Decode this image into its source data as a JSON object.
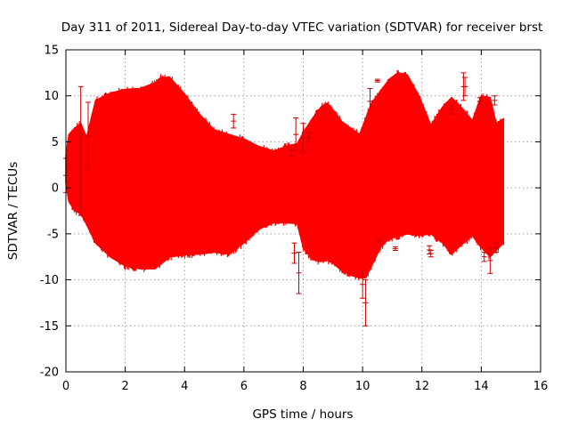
{
  "chart_data": {
    "type": "area",
    "title": "Day 311 of 2011, Sidereal Day-to-day VTEC variation (SDTVAR) for receiver brst",
    "xlabel": "GPS time / hours",
    "ylabel": "SDTVAR / TECUs",
    "xlim": [
      0,
      16
    ],
    "ylim": [
      -20,
      15
    ],
    "xticks": [
      0,
      2,
      4,
      6,
      8,
      10,
      12,
      14,
      16
    ],
    "yticks": [
      -20,
      -15,
      -10,
      -5,
      0,
      5,
      10,
      15
    ],
    "grid": true,
    "legend": "none",
    "colors": {
      "series": "#ff0000",
      "errorbar": "#cc0000",
      "grid": "#a0a0a0"
    },
    "series": [
      {
        "style": "error-bar band",
        "x": [
          0.0,
          0.1,
          0.3,
          0.5,
          0.7,
          1.0,
          1.5,
          2.0,
          2.5,
          3.0,
          3.2,
          3.5,
          4.0,
          4.5,
          5.0,
          5.5,
          6.0,
          6.5,
          7.0,
          7.5,
          7.8,
          8.0,
          8.3,
          8.6,
          8.8,
          9.0,
          9.3,
          9.6,
          9.9,
          10.1,
          10.3,
          10.6,
          10.9,
          11.2,
          11.5,
          11.9,
          12.3,
          12.7,
          13.0,
          13.4,
          13.7,
          14.0,
          14.3,
          14.5,
          14.75
        ],
        "upper": [
          3.5,
          5.8,
          6.5,
          7.0,
          5.5,
          9.5,
          10.3,
          10.7,
          10.8,
          11.4,
          12.0,
          12.0,
          10.2,
          8.0,
          6.3,
          5.8,
          5.3,
          4.5,
          4.0,
          4.6,
          4.8,
          6.0,
          7.5,
          8.8,
          9.2,
          8.5,
          7.2,
          6.5,
          5.8,
          7.5,
          9.2,
          10.5,
          11.8,
          12.5,
          12.3,
          10.0,
          6.8,
          8.8,
          9.8,
          8.5,
          7.3,
          10.0,
          9.8,
          7.0,
          7.5
        ],
        "lower": [
          0.5,
          -1.5,
          -2.5,
          -2.8,
          -4.0,
          -6.0,
          -7.5,
          -8.5,
          -8.8,
          -8.8,
          -8.3,
          -7.5,
          -7.3,
          -7.2,
          -7.0,
          -7.2,
          -6.0,
          -4.5,
          -3.8,
          -3.8,
          -3.9,
          -6.5,
          -7.8,
          -8.0,
          -7.8,
          -8.2,
          -9.0,
          -9.5,
          -9.8,
          -9.8,
          -8.5,
          -6.5,
          -5.5,
          -5.3,
          -5.0,
          -5.2,
          -5.0,
          -6.0,
          -7.2,
          -6.0,
          -5.2,
          -6.5,
          -7.5,
          -6.8,
          -6.0
        ]
      }
    ],
    "outliers": [
      {
        "x": 0.0,
        "lo": -0.5,
        "hi": 3.2
      },
      {
        "x": 0.5,
        "lo": -3.0,
        "hi": 11.0
      },
      {
        "x": 0.75,
        "lo": 2.0,
        "hi": 9.3
      },
      {
        "x": 5.65,
        "lo": 6.5,
        "hi": 8.0
      },
      {
        "x": 7.6,
        "lo": 3.5,
        "hi": 4.6
      },
      {
        "x": 7.7,
        "lo": -8.2,
        "hi": -6.0
      },
      {
        "x": 7.75,
        "lo": 4.0,
        "hi": 7.6
      },
      {
        "x": 7.85,
        "lo": -11.5,
        "hi": -7.0
      },
      {
        "x": 8.0,
        "lo": 3.8,
        "hi": 7.0
      },
      {
        "x": 8.2,
        "lo": 5.0,
        "hi": 6.0
      },
      {
        "x": 10.0,
        "lo": -12.0,
        "hi": -9.0
      },
      {
        "x": 10.1,
        "lo": -15.0,
        "hi": -10.0
      },
      {
        "x": 10.25,
        "lo": 8.0,
        "hi": 10.8
      },
      {
        "x": 10.5,
        "lo": 11.5,
        "hi": 11.8
      },
      {
        "x": 10.55,
        "lo": -6.0,
        "hi": -5.5
      },
      {
        "x": 11.1,
        "lo": -6.8,
        "hi": -6.4
      },
      {
        "x": 12.25,
        "lo": -7.2,
        "hi": -6.3
      },
      {
        "x": 12.3,
        "lo": -7.5,
        "hi": -6.8
      },
      {
        "x": 13.0,
        "lo": 8.0,
        "hi": 9.2
      },
      {
        "x": 13.4,
        "lo": 9.5,
        "hi": 12.5
      },
      {
        "x": 13.45,
        "lo": 10.0,
        "hi": 12.0
      },
      {
        "x": 13.95,
        "lo": 9.0,
        "hi": 9.8
      },
      {
        "x": 14.1,
        "lo": -8.0,
        "hi": -7.0
      },
      {
        "x": 14.3,
        "lo": -9.3,
        "hi": -6.5
      },
      {
        "x": 14.45,
        "lo": 9.0,
        "hi": 10.0
      },
      {
        "x": 14.5,
        "lo": -7.0,
        "hi": -6.0
      }
    ]
  }
}
